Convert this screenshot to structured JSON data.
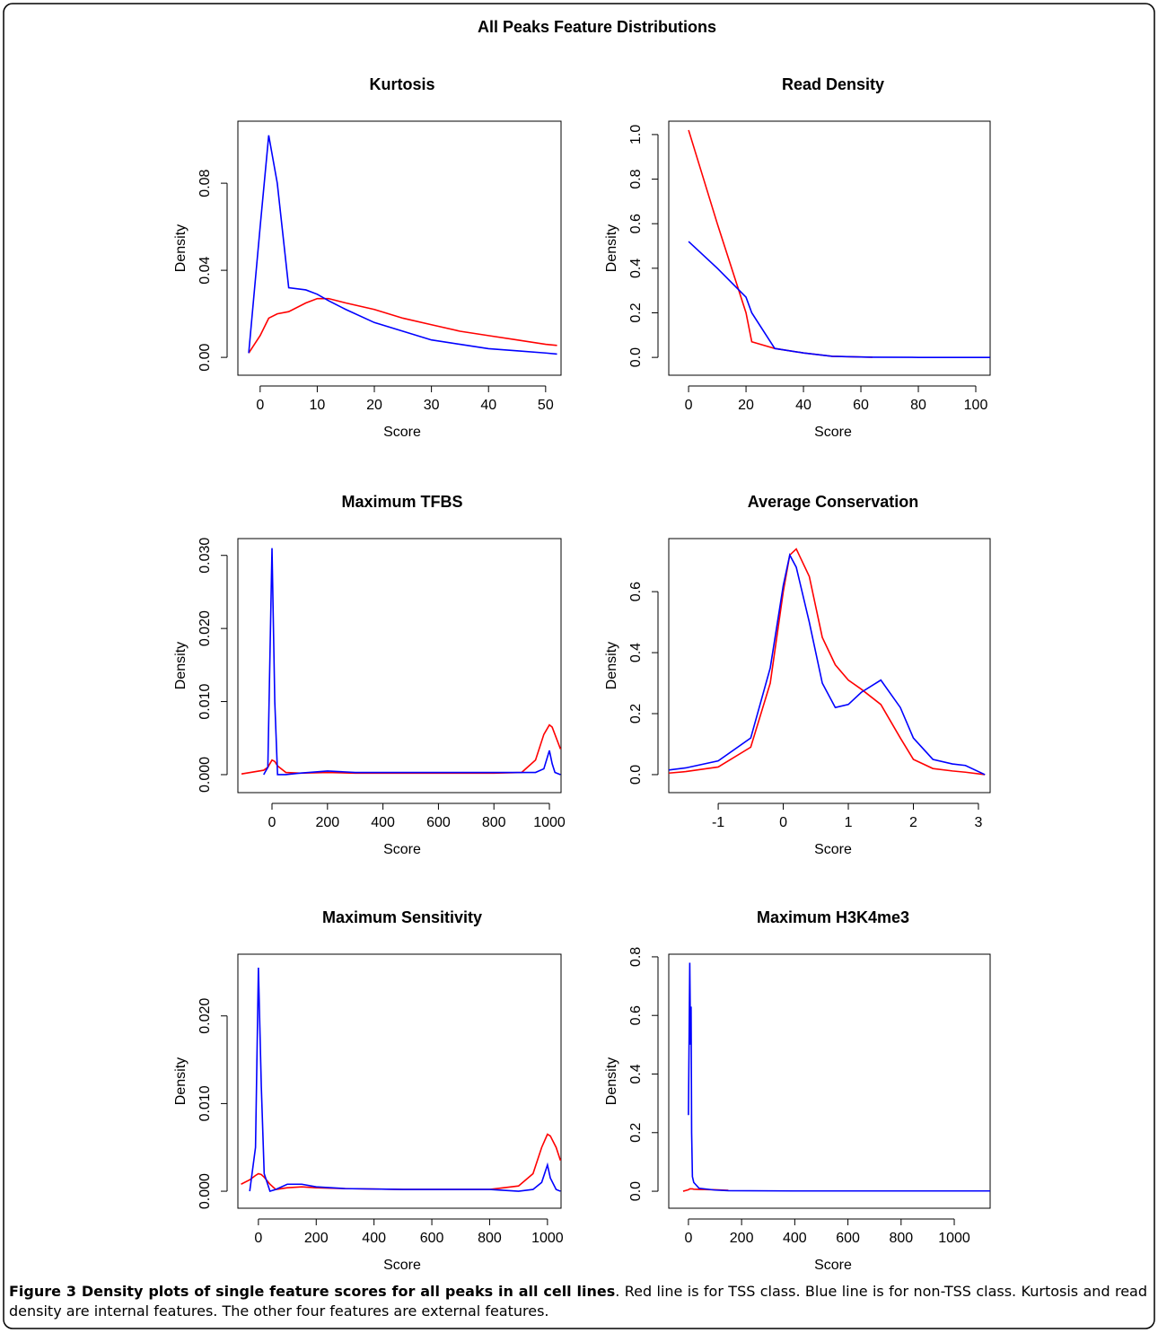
{
  "title": "All Peaks Feature Distributions",
  "chart_data": [
    {
      "type": "line",
      "title": "Kurtosis",
      "x_label": "Score",
      "y_label": "Density",
      "x": [
        -2,
        0,
        1.5,
        3,
        5,
        8,
        10,
        12,
        15,
        20,
        25,
        30,
        35,
        40,
        45,
        50,
        52
      ],
      "series": [
        {
          "color": "#ff0000",
          "values": [
            0.002,
            0.01,
            0.018,
            0.02,
            0.021,
            0.025,
            0.027,
            0.027,
            0.025,
            0.022,
            0.018,
            0.015,
            0.012,
            0.01,
            0.008,
            0.006,
            0.0055
          ]
        },
        {
          "color": "#0000ff",
          "values": [
            0.002,
            0.06,
            0.102,
            0.08,
            0.032,
            0.031,
            0.029,
            0.026,
            0.022,
            0.016,
            0.012,
            0.008,
            0.006,
            0.004,
            0.003,
            0.002,
            0.0015
          ]
        }
      ],
      "xlim": [
        -3.9,
        52.7
      ],
      "ylim": [
        -0.0082,
        0.1085
      ],
      "xticks": [
        0,
        10,
        20,
        30,
        40,
        50
      ],
      "yticks": [
        {
          "value": 0,
          "label": "0.00"
        },
        {
          "value": 0.04,
          "label": "0.04"
        },
        {
          "value": 0.08,
          "label": "0.08"
        }
      ]
    },
    {
      "type": "line",
      "title": "Read Density",
      "x_label": "Score",
      "y_label": "Density",
      "x": [
        0,
        10,
        20,
        22,
        30,
        40,
        50,
        60,
        64,
        80,
        100,
        105
      ],
      "series": [
        {
          "color": "#ff0000",
          "values": [
            1.02,
            0.6,
            0.2,
            0.07,
            0.04,
            0.02,
            0.005,
            0.002,
            0.001,
            null,
            null,
            null
          ]
        },
        {
          "color": "#0000ff",
          "values": [
            0.52,
            0.4,
            0.27,
            0.2,
            0.04,
            0.02,
            0.005,
            0.002,
            0.001,
            0,
            0,
            0
          ]
        }
      ],
      "xlim": [
        -6.9,
        105
      ],
      "ylim": [
        -0.08,
        1.06
      ],
      "xticks": [
        0,
        20,
        40,
        60,
        80,
        100
      ],
      "yticks": [
        {
          "value": 0,
          "label": "0.0"
        },
        0.2,
        0.4,
        0.6,
        0.8,
        {
          "value": 1,
          "label": "1.0"
        }
      ]
    },
    {
      "type": "line",
      "title": "Maximum TFBS",
      "x_label": "Score",
      "y_label": "Density",
      "x": [
        -110,
        -30,
        -15,
        0,
        10,
        20,
        50,
        100,
        200,
        300,
        400,
        600,
        800,
        900,
        950,
        980,
        1000,
        1010,
        1020,
        1040
      ],
      "series": [
        {
          "color": "#ff0000",
          "values": [
            0.0001,
            0.0006,
            0.001,
            0.002,
            0.0018,
            0.0012,
            0.0003,
            0.0002,
            0.0003,
            0.0002,
            0.0002,
            0.0002,
            0.0002,
            0.0003,
            0.002,
            0.0055,
            0.0068,
            0.0065,
            0.0055,
            0.0035
          ]
        },
        {
          "color": "#0000ff",
          "values": [
            null,
            0,
            0.001,
            0.031,
            0.01,
            0,
            0,
            0.0002,
            0.0005,
            0.0003,
            0.0003,
            0.0003,
            0.0003,
            0.0003,
            0.0003,
            0.0008,
            0.0033,
            0.0015,
            0.0003,
            0
          ]
        }
      ],
      "xlim": [
        -123,
        1042
      ],
      "ylim": [
        -0.00246,
        0.0323
      ],
      "xticks": [
        0,
        200,
        400,
        600,
        800,
        1000
      ],
      "yticks": [
        {
          "value": 0,
          "label": "0.000"
        },
        {
          "value": 0.01,
          "label": "0.010"
        },
        {
          "value": 0.02,
          "label": "0.020"
        },
        {
          "value": 0.03,
          "label": "0.030"
        }
      ]
    },
    {
      "type": "line",
      "title": "Average Conservation",
      "x_label": "Score",
      "y_label": "Density",
      "x": [
        -1.76,
        -1.5,
        -1,
        -0.5,
        -0.2,
        0,
        0.1,
        0.2,
        0.4,
        0.6,
        0.8,
        1,
        1.2,
        1.5,
        1.8,
        2,
        2.3,
        2.6,
        2.8,
        3.1
      ],
      "series": [
        {
          "color": "#ff0000",
          "values": [
            0.005,
            0.01,
            0.025,
            0.09,
            0.3,
            0.6,
            0.72,
            0.74,
            0.65,
            0.45,
            0.36,
            0.31,
            0.28,
            0.23,
            0.12,
            0.05,
            0.02,
            0.012,
            0.008,
            0
          ]
        },
        {
          "color": "#0000ff",
          "values": [
            0.015,
            0.022,
            0.045,
            0.12,
            0.35,
            0.62,
            0.72,
            0.68,
            0.5,
            0.3,
            0.22,
            0.23,
            0.27,
            0.31,
            0.22,
            0.12,
            0.05,
            0.035,
            0.03,
            0
          ]
        }
      ],
      "xlim": [
        -1.76,
        3.18
      ],
      "ylim": [
        -0.059,
        0.774
      ],
      "xticks": [
        -1,
        0,
        1,
        2,
        3
      ],
      "yticks": [
        {
          "value": 0,
          "label": "0.0"
        },
        0.2,
        0.4,
        0.6
      ]
    },
    {
      "type": "line",
      "title": "Maximum Sensitivity",
      "x_label": "Score",
      "y_label": "Density",
      "x": [
        -60,
        -30,
        -10,
        0,
        10,
        20,
        40,
        60,
        100,
        150,
        200,
        300,
        500,
        800,
        900,
        950,
        980,
        1000,
        1010,
        1030,
        1045
      ],
      "series": [
        {
          "color": "#ff0000",
          "values": [
            0.0008,
            0.0013,
            0.0018,
            0.002,
            0.0019,
            0.0016,
            0.0008,
            0.0002,
            0.0004,
            0.0005,
            0.0004,
            0.0003,
            0.0002,
            0.0002,
            0.0006,
            0.002,
            0.005,
            0.0065,
            0.0063,
            0.005,
            0.0035
          ]
        },
        {
          "color": "#0000ff",
          "values": [
            null,
            0,
            0.005,
            0.0255,
            0.012,
            0.002,
            0,
            0.0002,
            0.0008,
            0.0008,
            0.0005,
            0.0003,
            0.0002,
            0.0002,
            0,
            0.0002,
            0.001,
            0.003,
            0.0015,
            0.0002,
            0
          ]
        }
      ],
      "xlim": [
        -71,
        1047
      ],
      "ylim": [
        -0.00194,
        0.02704
      ],
      "xticks": [
        0,
        200,
        400,
        600,
        800,
        1000
      ],
      "yticks": [
        {
          "value": 0,
          "label": "0.000"
        },
        {
          "value": 0.01,
          "label": "0.010"
        },
        {
          "value": 0.02,
          "label": "0.020"
        }
      ]
    },
    {
      "type": "line",
      "title": "Maximum H3K4me3",
      "x_label": "Score",
      "y_label": "Density",
      "x": [
        -20,
        0,
        5,
        8,
        10,
        12,
        15,
        20,
        40,
        100,
        150,
        400,
        800,
        1135
      ],
      "series": [
        {
          "color": "#ff0000",
          "values": [
            0,
            0.005,
            0.008,
            0.008,
            0.008,
            0.008,
            0.008,
            0.007,
            0.006,
            0.005,
            0.003,
            null,
            null,
            null
          ]
        },
        {
          "color": "#0000ff",
          "values": [
            null,
            0.26,
            0.78,
            0.5,
            0.63,
            0.2,
            0.05,
            0.03,
            0.01,
            0.004,
            0.002,
            0.001,
            0.001,
            0.001
          ]
        }
      ],
      "xlim": [
        -74,
        1135
      ],
      "ylim": [
        -0.058,
        0.809
      ],
      "xticks": [
        0,
        200,
        400,
        600,
        800,
        1000
      ],
      "yticks": [
        {
          "value": 0,
          "label": "0.0"
        },
        0.2,
        0.4,
        0.6,
        0.8
      ]
    }
  ],
  "caption": {
    "bold": "Figure 3 Density plots of single feature scores for all peaks in all cell lines",
    "text": ". Red line is for TSS class. Blue line is for non-TSS class. Kurtosis and read density are internal features. The other four features are external features."
  }
}
